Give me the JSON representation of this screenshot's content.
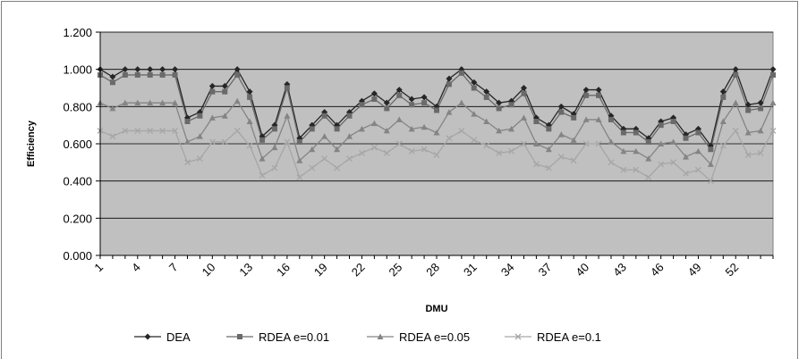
{
  "chart_data": {
    "type": "line",
    "title": "",
    "xlabel": "DMU",
    "ylabel": "Efficiency",
    "ylim": [
      0,
      1.2
    ],
    "y_ticks": [
      "0.000",
      "0.200",
      "0.400",
      "0.600",
      "0.800",
      "1.000",
      "1.200"
    ],
    "x_tick_labels": [
      "1",
      "4",
      "7",
      "10",
      "13",
      "16",
      "19",
      "22",
      "25",
      "28",
      "31",
      "34",
      "37",
      "40",
      "43",
      "46",
      "49",
      "52"
    ],
    "grid": true,
    "legend_position": "bottom",
    "plot_background": "#c0c0c0",
    "x": [
      1,
      2,
      3,
      4,
      5,
      6,
      7,
      8,
      9,
      10,
      11,
      12,
      13,
      14,
      15,
      16,
      17,
      18,
      19,
      20,
      21,
      22,
      23,
      24,
      25,
      26,
      27,
      28,
      29,
      30,
      31,
      32,
      33,
      34,
      35,
      36,
      37,
      38,
      39,
      40,
      41,
      42,
      43,
      44,
      45,
      46,
      47,
      48,
      49,
      50,
      51,
      52,
      53,
      54,
      55
    ],
    "series": [
      {
        "name": "DEA",
        "color": "#262626",
        "marker": "diamond",
        "values": [
          1.0,
          0.96,
          1.0,
          1.0,
          1.0,
          1.0,
          1.0,
          0.74,
          0.77,
          0.91,
          0.91,
          1.0,
          0.88,
          0.64,
          0.7,
          0.92,
          0.63,
          0.7,
          0.77,
          0.7,
          0.77,
          0.83,
          0.87,
          0.82,
          0.89,
          0.84,
          0.85,
          0.8,
          0.95,
          1.0,
          0.93,
          0.88,
          0.82,
          0.83,
          0.9,
          0.74,
          0.7,
          0.8,
          0.76,
          0.89,
          0.89,
          0.75,
          0.68,
          0.68,
          0.63,
          0.72,
          0.74,
          0.65,
          0.68,
          0.59,
          0.88,
          1.0,
          0.81,
          0.82,
          1.0
        ]
      },
      {
        "name": "RDEA e=0.01",
        "color": "#6a6a6a",
        "marker": "square",
        "values": [
          0.97,
          0.93,
          0.97,
          0.97,
          0.97,
          0.97,
          0.97,
          0.72,
          0.75,
          0.88,
          0.88,
          0.97,
          0.85,
          0.62,
          0.68,
          0.9,
          0.61,
          0.68,
          0.75,
          0.68,
          0.75,
          0.81,
          0.84,
          0.79,
          0.86,
          0.81,
          0.82,
          0.78,
          0.92,
          0.98,
          0.9,
          0.85,
          0.79,
          0.81,
          0.87,
          0.72,
          0.68,
          0.77,
          0.74,
          0.86,
          0.86,
          0.73,
          0.66,
          0.66,
          0.61,
          0.7,
          0.72,
          0.63,
          0.66,
          0.57,
          0.85,
          0.97,
          0.78,
          0.79,
          0.97
        ]
      },
      {
        "name": "RDEA e=0.05",
        "color": "#848484",
        "marker": "triangle",
        "values": [
          0.82,
          0.79,
          0.82,
          0.82,
          0.82,
          0.82,
          0.82,
          0.61,
          0.64,
          0.74,
          0.75,
          0.83,
          0.72,
          0.52,
          0.58,
          0.75,
          0.51,
          0.57,
          0.64,
          0.57,
          0.64,
          0.68,
          0.71,
          0.67,
          0.73,
          0.68,
          0.69,
          0.66,
          0.77,
          0.82,
          0.76,
          0.72,
          0.67,
          0.68,
          0.74,
          0.6,
          0.57,
          0.65,
          0.62,
          0.73,
          0.73,
          0.61,
          0.56,
          0.56,
          0.52,
          0.6,
          0.61,
          0.53,
          0.56,
          0.49,
          0.72,
          0.82,
          0.66,
          0.67,
          0.82
        ]
      },
      {
        "name": "RDEA e=0.1",
        "color": "#a6a6a6",
        "marker": "x",
        "values": [
          0.67,
          0.64,
          0.67,
          0.67,
          0.67,
          0.67,
          0.67,
          0.5,
          0.52,
          0.61,
          0.61,
          0.67,
          0.59,
          0.43,
          0.47,
          0.61,
          0.42,
          0.47,
          0.52,
          0.47,
          0.52,
          0.55,
          0.58,
          0.55,
          0.6,
          0.56,
          0.57,
          0.54,
          0.63,
          0.67,
          0.62,
          0.59,
          0.55,
          0.56,
          0.6,
          0.49,
          0.47,
          0.53,
          0.51,
          0.6,
          0.6,
          0.5,
          0.46,
          0.46,
          0.42,
          0.49,
          0.5,
          0.44,
          0.46,
          0.4,
          0.59,
          0.67,
          0.54,
          0.55,
          0.67
        ]
      }
    ]
  }
}
